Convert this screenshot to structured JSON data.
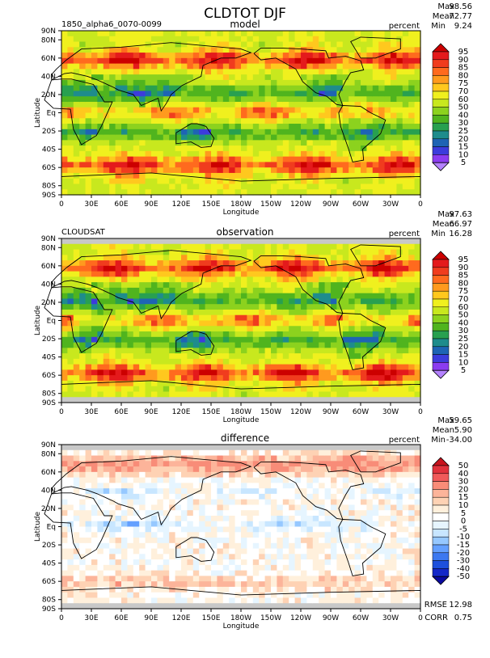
{
  "figure": {
    "title": "CLDTOT DJF"
  },
  "chart_data": [
    {
      "type": "heatmap",
      "title": "model",
      "left_label": "1850_alpha6_0070-0099",
      "units": "percent",
      "stats": {
        "max_label": "Max",
        "max": "98.56",
        "mean_label": "Mean",
        "mean": "72.77",
        "min_label": "Min",
        "min": "9.24"
      },
      "xlabel": "Longitude",
      "ylabel": "Latitude",
      "x_ticks": [
        "0",
        "30E",
        "60E",
        "90E",
        "120E",
        "150E",
        "180W",
        "150W",
        "120W",
        "90W",
        "60W",
        "30W",
        "0"
      ],
      "y_ticks": [
        "90N",
        "80N",
        "60N",
        "40N",
        "20N",
        "Eq",
        "20S",
        "40S",
        "60S",
        "80S",
        "90S"
      ],
      "xlim": [
        0,
        360
      ],
      "ylim": [
        -90,
        90
      ],
      "colorbar": {
        "levels": [
          "95",
          "90",
          "85",
          "80",
          "75",
          "70",
          "60",
          "50",
          "40",
          "30",
          "25",
          "20",
          "15",
          "10",
          "5"
        ],
        "colors": [
          "#cc0000",
          "#e41a1c",
          "#f03c1e",
          "#ff6a1e",
          "#ff9a1e",
          "#ffc81e",
          "#f0f01e",
          "#c8e81e",
          "#8cd21e",
          "#50b41e",
          "#28a050",
          "#1e8c8c",
          "#1e64b4",
          "#3c3cdc",
          "#8c3cf0",
          "#b482ff"
        ]
      }
    },
    {
      "type": "heatmap",
      "title": "observation",
      "left_label": "CLOUDSAT",
      "units": "percent",
      "stats": {
        "max_label": "Max",
        "max": "97.63",
        "mean_label": "Mean",
        "mean": "66.97",
        "min_label": "Min",
        "min": "16.28"
      },
      "xlabel": "Longitude",
      "ylabel": "Latitude",
      "x_ticks": [
        "0",
        "30E",
        "60E",
        "90E",
        "120E",
        "150E",
        "180W",
        "150W",
        "120W",
        "90W",
        "60W",
        "30W",
        "0"
      ],
      "y_ticks": [
        "90N",
        "80N",
        "60N",
        "40N",
        "20N",
        "Eq",
        "20S",
        "40S",
        "60S",
        "80S",
        "90S"
      ],
      "xlim": [
        0,
        360
      ],
      "ylim": [
        -90,
        90
      ],
      "colorbar": {
        "levels": [
          "95",
          "90",
          "85",
          "80",
          "75",
          "70",
          "60",
          "50",
          "40",
          "30",
          "25",
          "20",
          "15",
          "10",
          "5"
        ],
        "colors": [
          "#cc0000",
          "#e41a1c",
          "#f03c1e",
          "#ff6a1e",
          "#ff9a1e",
          "#ffc81e",
          "#f0f01e",
          "#c8e81e",
          "#8cd21e",
          "#50b41e",
          "#28a050",
          "#1e8c8c",
          "#1e64b4",
          "#3c3cdc",
          "#8c3cf0",
          "#b482ff"
        ]
      }
    },
    {
      "type": "heatmap",
      "title": "difference",
      "left_label": "",
      "units": "percent",
      "stats": {
        "max_label": "Max",
        "max": "59.65",
        "mean_label": "Mean",
        "mean": "5.90",
        "min_label": "Min",
        "min": "-34.00"
      },
      "bottom_stats": {
        "rmse_label": "RMSE",
        "rmse": "12.98",
        "corr_label": "CORR",
        "corr": "0.75"
      },
      "xlabel": "Longitude",
      "ylabel": "Latitude",
      "x_ticks": [
        "0",
        "30E",
        "60E",
        "90E",
        "120E",
        "150E",
        "180W",
        "150W",
        "120W",
        "90W",
        "60W",
        "30W",
        "0"
      ],
      "y_ticks": [
        "90N",
        "80N",
        "60N",
        "40N",
        "20N",
        "Eq",
        "20S",
        "40S",
        "60S",
        "80S",
        "90S"
      ],
      "xlim": [
        0,
        360
      ],
      "ylim": [
        -90,
        90
      ],
      "colorbar": {
        "levels": [
          "50",
          "40",
          "30",
          "20",
          "15",
          "10",
          "5",
          "0",
          "-5",
          "-10",
          "-15",
          "-20",
          "-30",
          "-40",
          "-50"
        ],
        "colors": [
          "#c8141e",
          "#e1323c",
          "#f05a5a",
          "#f88c78",
          "#fcb49a",
          "#fed2b4",
          "#fff0dc",
          "#ffffff",
          "#e6f5ff",
          "#c8e6ff",
          "#96c8ff",
          "#64a0ff",
          "#3c78f0",
          "#1e50dc",
          "#1428c8",
          "#0a0aa0"
        ]
      }
    }
  ]
}
